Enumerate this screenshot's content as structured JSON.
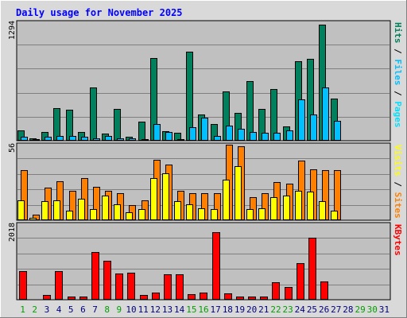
{
  "chart_data": {
    "type": "bar",
    "title": "Daily usage for November 2025",
    "categories": [
      "1",
      "2",
      "3",
      "4",
      "5",
      "6",
      "7",
      "8",
      "9",
      "10",
      "11",
      "12",
      "13",
      "14",
      "15",
      "16",
      "17",
      "18",
      "19",
      "20",
      "21",
      "22",
      "23",
      "24",
      "25",
      "26",
      "27",
      "28",
      "29",
      "30",
      "31"
    ],
    "weekend_days": [
      "1",
      "2",
      "8",
      "9",
      "15",
      "16",
      "22",
      "23",
      "29",
      "30"
    ],
    "colors": {
      "hits": "#00805c",
      "files": "#00c0ff",
      "pages": "#00e0ff",
      "visits": "#ffff00",
      "sites": "#ff8000",
      "kbytes": "#ff0000",
      "background": "#c0c0c0",
      "frame": "#d9d9d9",
      "title": "#0000ff",
      "weekday_label": "#000080",
      "weekend_label": "#00a000"
    },
    "panels": [
      {
        "label_max": "1294",
        "ylim": [
          0,
          1294
        ],
        "legend": [
          "Pages",
          "Files",
          "Hits"
        ],
        "series": [
          {
            "name": "Hits",
            "color": "#00805c",
            "values": [
              110,
              28,
              96,
              355,
              336,
              92,
              585,
              78,
              345,
              45,
              210,
              905,
              100,
              88,
              975,
              290,
              185,
              535,
              300,
              650,
              350,
              565,
              158,
              865,
              895,
              1270,
              460,
              0,
              0,
              0,
              0
            ]
          },
          {
            "name": "Files",
            "color": "#00c0ff",
            "values": [
              40,
              18,
              45,
              50,
              55,
              40,
              30,
              48,
              28,
              28,
              20,
              180,
              95,
              20,
              150,
              255,
              55,
              165,
              130,
              95,
              90,
              90,
              115,
              455,
              290,
              585,
              220,
              0,
              0,
              0,
              0
            ]
          },
          {
            "name": "Pages",
            "color": "#00e0ff",
            "values": [
              0,
              0,
              0,
              0,
              0,
              0,
              0,
              0,
              0,
              0,
              0,
              0,
              0,
              0,
              0,
              0,
              0,
              0,
              0,
              0,
              0,
              0,
              0,
              0,
              0,
              0,
              0,
              0,
              0,
              0,
              0
            ]
          }
        ]
      },
      {
        "label_max": "56",
        "ylim": [
          0,
          56
        ],
        "legend": [
          "Sites",
          "Visits"
        ],
        "series": [
          {
            "name": "Sites",
            "color": "#ff8000",
            "values": [
              37,
              4,
              24,
              29,
              22,
              31,
              25,
              22,
              20,
              11,
              15,
              45,
              41,
              22,
              20,
              20,
              20,
              56,
              55,
              17,
              20,
              28,
              27,
              44,
              38,
              37,
              37,
              0,
              0,
              0,
              0
            ]
          },
          {
            "name": "Visits",
            "color": "#ffff00",
            "values": [
              15,
              2,
              14,
              15,
              7,
              16,
              8,
              18,
              12,
              6,
              8,
              31,
              35,
              14,
              12,
              9,
              8,
              30,
              40,
              8,
              9,
              17,
              18,
              22,
              21,
              14,
              7,
              0,
              0,
              0,
              0
            ]
          }
        ]
      },
      {
        "label_max": "2018",
        "ylim": [
          0,
          2018
        ],
        "legend": [
          "KBytes"
        ],
        "series": [
          {
            "name": "KBytes",
            "color": "#ff0000",
            "values": [
              765,
              25,
              130,
              770,
              95,
              85,
              1270,
              1040,
              700,
              715,
              120,
              200,
              680,
              690,
              150,
              200,
              1800,
              180,
              95,
              80,
              80,
              470,
              335,
              970,
              1650,
              480,
              0,
              0,
              0,
              0,
              0
            ]
          }
        ]
      }
    ]
  }
}
